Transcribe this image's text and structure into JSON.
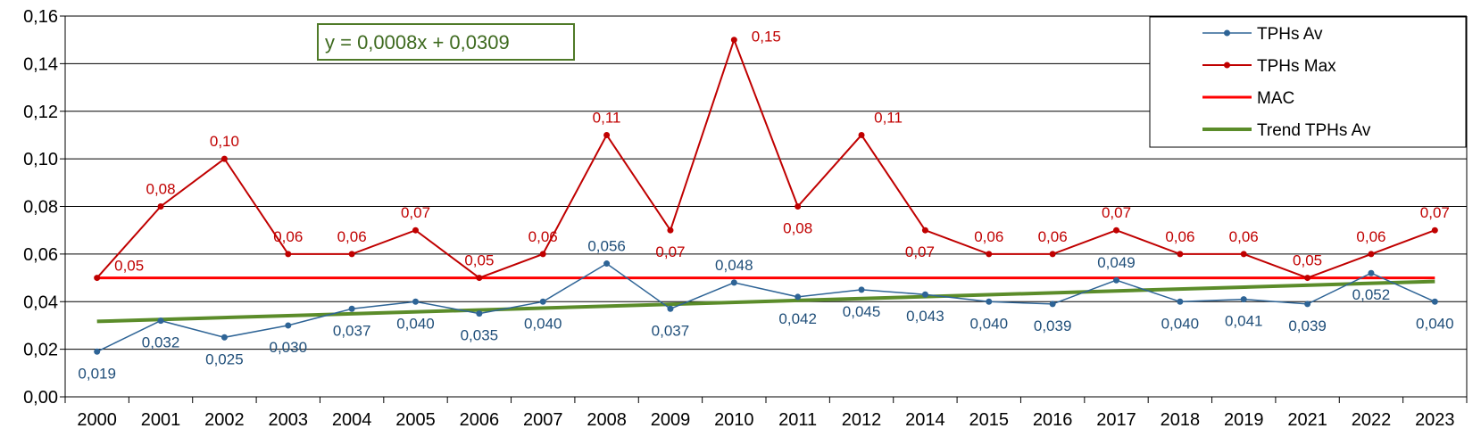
{
  "chart_data": {
    "type": "line",
    "categories": [
      "2000",
      "2001",
      "2002",
      "2003",
      "2004",
      "2005",
      "2006",
      "2007",
      "2008",
      "2009",
      "2010",
      "2011",
      "2012",
      "2014",
      "2015",
      "2016",
      "2017",
      "2018",
      "2019",
      "2021",
      "2022",
      "2023"
    ],
    "ylim": [
      0,
      0.16
    ],
    "yticks": [
      "0,00",
      "0,02",
      "0,04",
      "0,06",
      "0,08",
      "0,10",
      "0,12",
      "0,14",
      "0,16"
    ],
    "grid": true,
    "legend_position": "top-right",
    "series": [
      {
        "name": "TPHs Av",
        "color": "#2E6496",
        "values": [
          0.019,
          0.032,
          0.025,
          0.03,
          0.037,
          0.04,
          0.035,
          0.04,
          0.056,
          0.037,
          0.048,
          0.042,
          0.045,
          0.043,
          0.04,
          0.039,
          0.049,
          0.04,
          0.041,
          0.039,
          0.052,
          0.04
        ],
        "labels": [
          "0,019",
          "0,032",
          "0,025",
          "0,030",
          "0,037",
          "0,040",
          "0,035",
          "0,040",
          "0,056",
          "0,037",
          "0,048",
          "0,042",
          "0,045",
          "0,043",
          "0,040",
          "0,039",
          "0,049",
          "0,040",
          "0,041",
          "0,039",
          "0,052",
          "0,040"
        ]
      },
      {
        "name": "TPHs Max",
        "color": "#C00000",
        "values": [
          0.05,
          0.08,
          0.1,
          0.06,
          0.06,
          0.07,
          0.05,
          0.06,
          0.11,
          0.07,
          0.15,
          0.08,
          0.11,
          0.07,
          0.06,
          0.06,
          0.07,
          0.06,
          0.06,
          0.05,
          0.06,
          0.07
        ],
        "labels": [
          "0,05",
          "0,08",
          "0,10",
          "0,06",
          "0,06",
          "0,07",
          "0,05",
          "0,06",
          "0,11",
          "0,07",
          "0,15",
          "0,08",
          "0,11",
          "0,07",
          "0,06",
          "0,06",
          "0,07",
          "0,06",
          "0,06",
          "0,05",
          "0,06",
          "0,07"
        ]
      },
      {
        "name": "MAC",
        "color": "#FF0000",
        "value": 0.05
      },
      {
        "name": "Trend TPHs Av",
        "color": "#5B8C2A",
        "slope": 0.0008,
        "intercept": 0.0309
      }
    ],
    "trend_equation": "y = 0,0008x + 0,0309"
  }
}
